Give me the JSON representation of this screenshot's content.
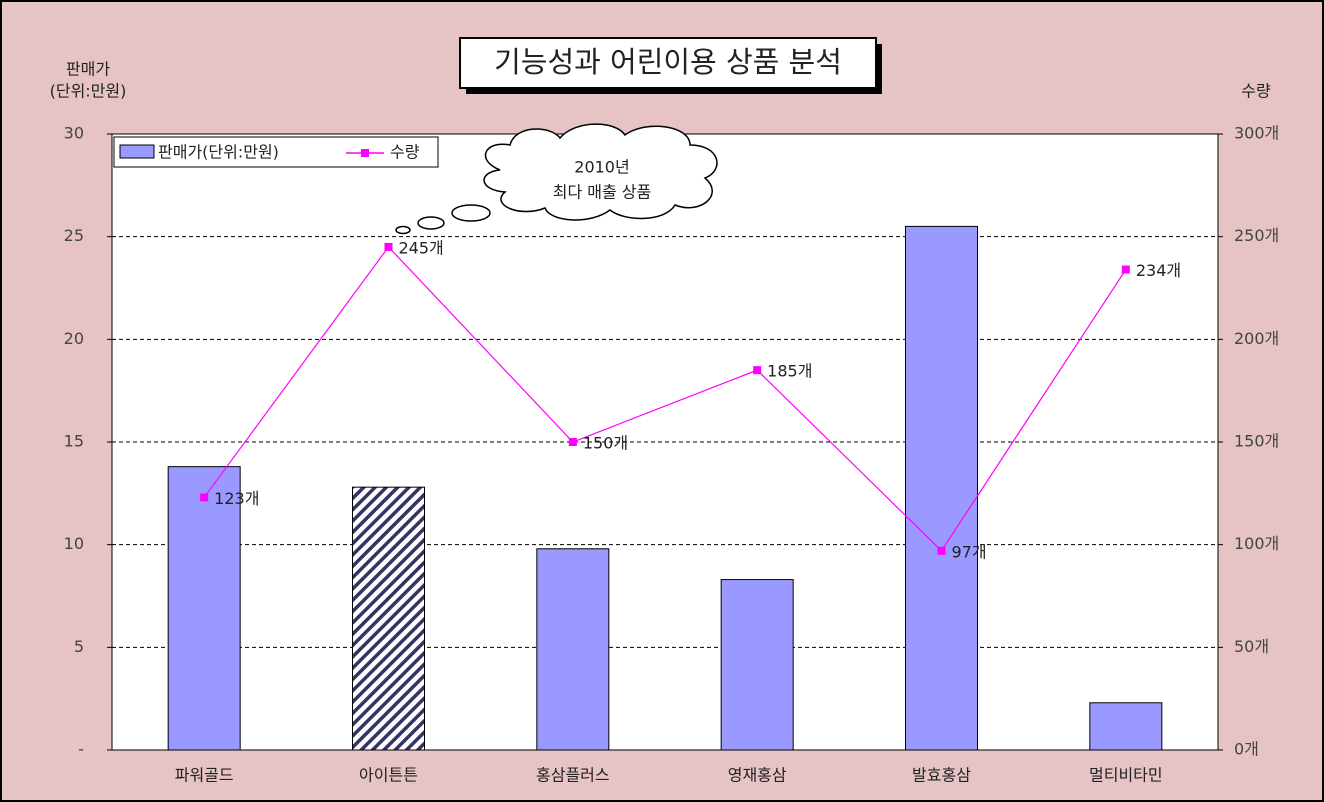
{
  "chart_data": {
    "type": "bar-line",
    "title": "기능성과 어린이용 상품 분석",
    "ylabel": [
      "판매가",
      "(단위:만원)"
    ],
    "y2label": "수량",
    "annotation": [
      "2010년",
      "최다 매출 상품"
    ],
    "categories": [
      "파워골드",
      "아이튼튼",
      "홍삼플러스",
      "영재홍삼",
      "발효홍삼",
      "멀티비타민"
    ],
    "series": [
      {
        "name": "판매가(단위:만원)",
        "type": "bar",
        "color": "#9999ff",
        "hatched_index": 1,
        "hatch_color": "#333366",
        "values": [
          13.8,
          12.8,
          9.8,
          8.3,
          25.5,
          2.3
        ]
      },
      {
        "name": "수량",
        "type": "line",
        "axis": "y2",
        "color": "#ff00ff",
        "values": [
          123,
          245,
          150,
          185,
          97,
          234
        ],
        "value_labels": [
          "123개",
          "245개",
          "150개",
          "185개",
          "97개",
          "234개"
        ]
      }
    ],
    "ylim": [
      0,
      30
    ],
    "yticks": [
      {
        "value": 0,
        "label": "-"
      },
      5,
      10,
      15,
      20,
      25,
      30
    ],
    "y2lim": [
      0,
      300
    ],
    "y2ticks": [
      {
        "value": 0,
        "label": "0개"
      },
      {
        "value": 50,
        "label": "50개"
      },
      {
        "value": 100,
        "label": "100개"
      },
      {
        "value": 150,
        "label": "150개"
      },
      {
        "value": 200,
        "label": "200개"
      },
      {
        "value": 250,
        "label": "250개"
      },
      {
        "value": 300,
        "label": "300개"
      }
    ],
    "grid": true,
    "legend": "top-left"
  }
}
